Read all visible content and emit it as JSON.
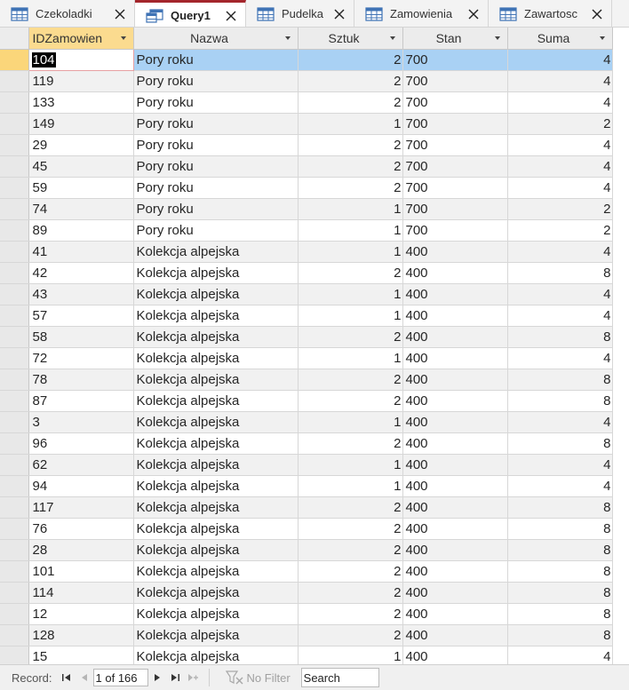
{
  "tabs": [
    {
      "label": "Czekoladki",
      "icon": "table-icon",
      "active": false
    },
    {
      "label": "Query1",
      "icon": "query-icon",
      "active": true
    },
    {
      "label": "Pudelka",
      "icon": "table-icon",
      "active": false
    },
    {
      "label": "Zamowienia",
      "icon": "table-icon",
      "active": false
    },
    {
      "label": "Zawartosc",
      "icon": "table-icon",
      "active": false
    }
  ],
  "columns": [
    "IDZamowien",
    "Nazwa",
    "Sztuk",
    "Stan",
    "Suma"
  ],
  "rows": [
    [
      "104",
      "Pory roku",
      "2",
      "700",
      "4"
    ],
    [
      "119",
      "Pory roku",
      "2",
      "700",
      "4"
    ],
    [
      "133",
      "Pory roku",
      "2",
      "700",
      "4"
    ],
    [
      "149",
      "Pory roku",
      "1",
      "700",
      "2"
    ],
    [
      "29",
      "Pory roku",
      "2",
      "700",
      "4"
    ],
    [
      "45",
      "Pory roku",
      "2",
      "700",
      "4"
    ],
    [
      "59",
      "Pory roku",
      "2",
      "700",
      "4"
    ],
    [
      "74",
      "Pory roku",
      "1",
      "700",
      "2"
    ],
    [
      "89",
      "Pory roku",
      "1",
      "700",
      "2"
    ],
    [
      "41",
      "Kolekcja alpejska",
      "1",
      "400",
      "4"
    ],
    [
      "42",
      "Kolekcja alpejska",
      "2",
      "400",
      "8"
    ],
    [
      "43",
      "Kolekcja alpejska",
      "1",
      "400",
      "4"
    ],
    [
      "57",
      "Kolekcja alpejska",
      "1",
      "400",
      "4"
    ],
    [
      "58",
      "Kolekcja alpejska",
      "2",
      "400",
      "8"
    ],
    [
      "72",
      "Kolekcja alpejska",
      "1",
      "400",
      "4"
    ],
    [
      "78",
      "Kolekcja alpejska",
      "2",
      "400",
      "8"
    ],
    [
      "87",
      "Kolekcja alpejska",
      "2",
      "400",
      "8"
    ],
    [
      "3",
      "Kolekcja alpejska",
      "1",
      "400",
      "4"
    ],
    [
      "96",
      "Kolekcja alpejska",
      "2",
      "400",
      "8"
    ],
    [
      "62",
      "Kolekcja alpejska",
      "1",
      "400",
      "4"
    ],
    [
      "94",
      "Kolekcja alpejska",
      "1",
      "400",
      "4"
    ],
    [
      "117",
      "Kolekcja alpejska",
      "2",
      "400",
      "8"
    ],
    [
      "76",
      "Kolekcja alpejska",
      "2",
      "400",
      "8"
    ],
    [
      "28",
      "Kolekcja alpejska",
      "2",
      "400",
      "8"
    ],
    [
      "101",
      "Kolekcja alpejska",
      "2",
      "400",
      "8"
    ],
    [
      "114",
      "Kolekcja alpejska",
      "2",
      "400",
      "8"
    ],
    [
      "12",
      "Kolekcja alpejska",
      "2",
      "400",
      "8"
    ],
    [
      "128",
      "Kolekcja alpejska",
      "2",
      "400",
      "8"
    ],
    [
      "15",
      "Kolekcja alpejska",
      "1",
      "400",
      "4"
    ]
  ],
  "current_row": 0,
  "navigation": {
    "record_label": "Record:",
    "record_position": "1 of 166",
    "filter_label": "No Filter",
    "search_label": "Search"
  },
  "colors": {
    "active_tab_accent": "#a4262c",
    "selected_header": "#fbdb8f",
    "current_row": "#a9d1f4",
    "current_row_selector": "#fbd67a"
  }
}
